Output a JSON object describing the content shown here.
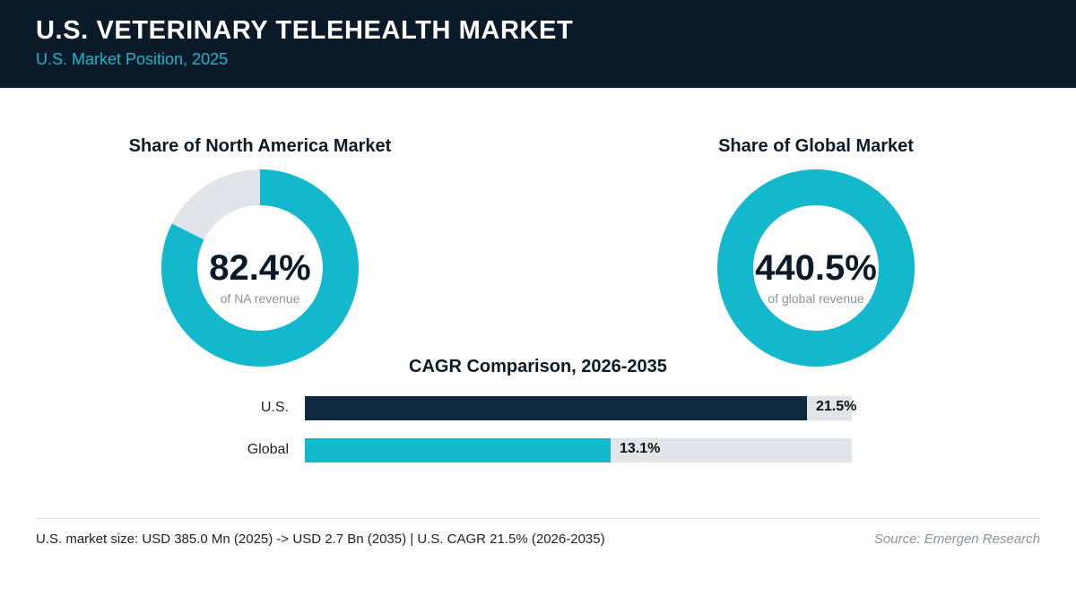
{
  "header": {
    "title": "U.S. VETERINARY TELEHEALTH MARKET",
    "subtitle": "U.S. Market Position, 2025"
  },
  "colors": {
    "header_bg": "#0b1a28",
    "accent": "#14b8cc",
    "us_bar": "#0f2940",
    "track": "#e1e5ea"
  },
  "chart_data": [
    {
      "type": "pie",
      "title": "Share of North America Market",
      "value": 82.4,
      "value_label": "82.4%",
      "caption": "of NA revenue"
    },
    {
      "type": "pie",
      "title": "Share of Global Market",
      "value": 440.5,
      "value_label": "440.5%",
      "caption": "of global revenue"
    },
    {
      "type": "bar",
      "title": "CAGR Comparison, 2026-2035",
      "categories": [
        "U.S.",
        "Global"
      ],
      "values": [
        21.5,
        13.1
      ],
      "value_labels": [
        "21.5%",
        "13.1%"
      ],
      "colors": [
        "#0f2940",
        "#14b8cc"
      ],
      "xlim": [
        0,
        23.4
      ]
    }
  ],
  "footer": {
    "note": "U.S. market size: USD 385.0 Mn (2025) -> USD 2.7 Bn (2035)  |  U.S. CAGR 21.5% (2026-2035)",
    "source": "Source: Emergen Research"
  }
}
